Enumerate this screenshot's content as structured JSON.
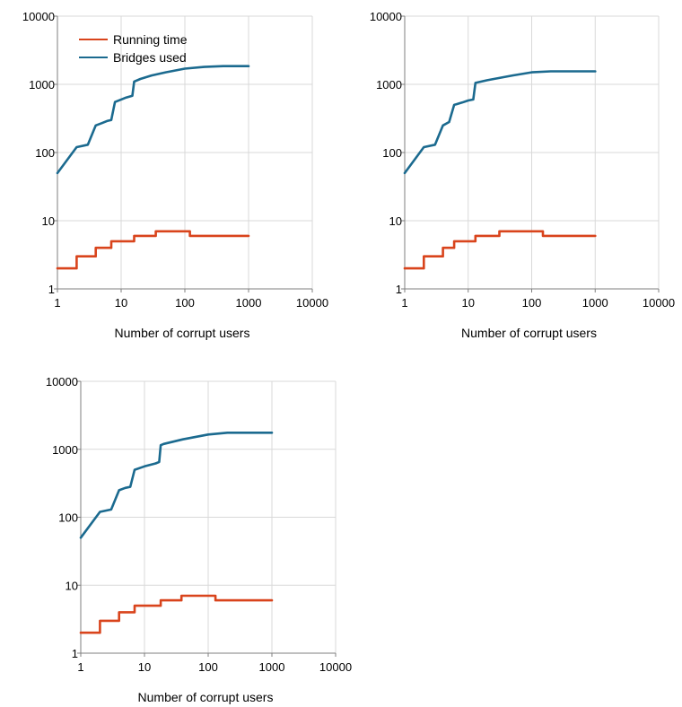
{
  "colors": {
    "running_time": "#d9441c",
    "bridges_used": "#1b6a8f",
    "grid": "#d9d9d9"
  },
  "chart_data": [
    {
      "type": "line",
      "x_scale": "log",
      "y_scale": "log",
      "xlim": [
        1,
        10000
      ],
      "ylim": [
        1,
        10000
      ],
      "x_ticks": [
        "1",
        "10",
        "100",
        "1000",
        "10000"
      ],
      "y_ticks": [
        "1",
        "10",
        "100",
        "1000",
        "10000"
      ],
      "xlabel": "Number of corrupt users",
      "ylabel": "",
      "grid": true,
      "legend": "top-left",
      "series": [
        {
          "name": "Running time",
          "color_key": "running_time",
          "step": true,
          "points": [
            [
              1,
              2
            ],
            [
              2,
              3
            ],
            [
              3,
              3
            ],
            [
              4,
              4
            ],
            [
              6,
              4
            ],
            [
              7,
              5
            ],
            [
              12,
              5
            ],
            [
              16,
              6
            ],
            [
              32,
              6
            ],
            [
              35,
              7
            ],
            [
              100,
              7
            ],
            [
              120,
              6
            ],
            [
              1000,
              6
            ]
          ]
        },
        {
          "name": "Bridges used",
          "color_key": "bridges_used",
          "step": false,
          "points": [
            [
              1,
              50
            ],
            [
              2,
              120
            ],
            [
              3,
              130
            ],
            [
              4,
              250
            ],
            [
              5,
              270
            ],
            [
              6,
              290
            ],
            [
              7,
              300
            ],
            [
              8,
              550
            ],
            [
              10,
              600
            ],
            [
              12,
              640
            ],
            [
              15,
              680
            ],
            [
              16,
              1100
            ],
            [
              20,
              1200
            ],
            [
              30,
              1350
            ],
            [
              50,
              1500
            ],
            [
              100,
              1700
            ],
            [
              200,
              1800
            ],
            [
              400,
              1850
            ],
            [
              1000,
              1850
            ]
          ]
        }
      ]
    },
    {
      "type": "line",
      "x_scale": "log",
      "y_scale": "log",
      "xlim": [
        1,
        10000
      ],
      "ylim": [
        1,
        10000
      ],
      "x_ticks": [
        "1",
        "10",
        "100",
        "1000",
        "10000"
      ],
      "y_ticks": [
        "1",
        "10",
        "100",
        "1000",
        "10000"
      ],
      "xlabel": "Number of corrupt users",
      "ylabel": "",
      "grid": true,
      "legend": "none",
      "series": [
        {
          "name": "",
          "color_key": "running_time",
          "step": true,
          "points": [
            [
              1,
              2
            ],
            [
              2,
              3
            ],
            [
              3,
              3
            ],
            [
              4,
              4
            ],
            [
              5,
              4
            ],
            [
              6,
              5
            ],
            [
              10,
              5
            ],
            [
              13,
              6
            ],
            [
              28,
              6
            ],
            [
              31,
              7
            ],
            [
              140,
              7
            ],
            [
              150,
              6
            ],
            [
              1000,
              6
            ]
          ]
        },
        {
          "name": "",
          "color_key": "bridges_used",
          "step": false,
          "points": [
            [
              1,
              50
            ],
            [
              2,
              120
            ],
            [
              3,
              130
            ],
            [
              4,
              250
            ],
            [
              5,
              280
            ],
            [
              6,
              500
            ],
            [
              8,
              540
            ],
            [
              10,
              580
            ],
            [
              12,
              600
            ],
            [
              13,
              1050
            ],
            [
              20,
              1150
            ],
            [
              50,
              1350
            ],
            [
              100,
              1500
            ],
            [
              200,
              1550
            ],
            [
              400,
              1550
            ],
            [
              1000,
              1550
            ]
          ]
        }
      ]
    },
    {
      "type": "line",
      "x_scale": "log",
      "y_scale": "log",
      "xlim": [
        1,
        10000
      ],
      "ylim": [
        1,
        10000
      ],
      "x_ticks": [
        "1",
        "10",
        "100",
        "1000",
        "10000"
      ],
      "y_ticks": [
        "1",
        "10",
        "100",
        "1000",
        "10000"
      ],
      "xlabel": "Number of corrupt users",
      "ylabel": "",
      "grid": true,
      "legend": "none",
      "series": [
        {
          "name": "",
          "color_key": "running_time",
          "step": true,
          "points": [
            [
              1,
              2
            ],
            [
              2,
              3
            ],
            [
              3,
              3
            ],
            [
              4,
              4
            ],
            [
              6,
              4
            ],
            [
              7,
              5
            ],
            [
              17,
              5
            ],
            [
              18,
              6
            ],
            [
              35,
              6
            ],
            [
              38,
              7
            ],
            [
              120,
              7
            ],
            [
              130,
              6
            ],
            [
              1000,
              6
            ]
          ]
        },
        {
          "name": "",
          "color_key": "bridges_used",
          "step": false,
          "points": [
            [
              1,
              50
            ],
            [
              2,
              120
            ],
            [
              3,
              130
            ],
            [
              4,
              250
            ],
            [
              5,
              270
            ],
            [
              6,
              280
            ],
            [
              7,
              500
            ],
            [
              10,
              560
            ],
            [
              15,
              620
            ],
            [
              17,
              650
            ],
            [
              18,
              1150
            ],
            [
              20,
              1200
            ],
            [
              40,
              1400
            ],
            [
              100,
              1650
            ],
            [
              200,
              1750
            ],
            [
              400,
              1750
            ],
            [
              1000,
              1750
            ]
          ]
        }
      ]
    }
  ]
}
